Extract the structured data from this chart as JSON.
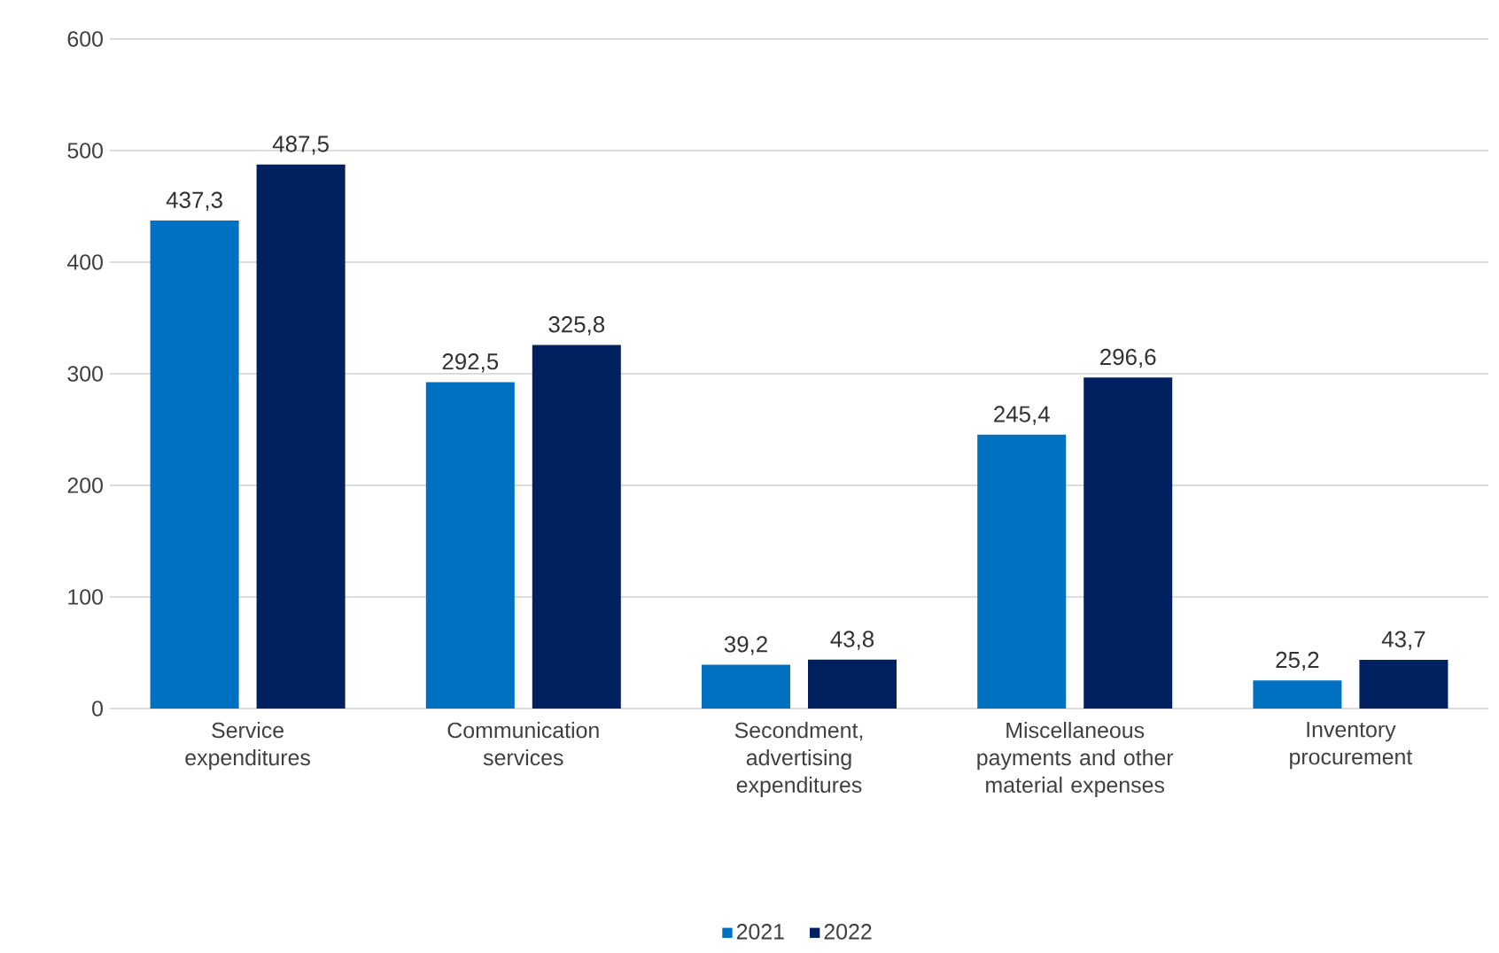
{
  "chart_data": {
    "type": "bar",
    "categories": [
      "Service expenditures",
      "Communication services",
      "Secondment, advertising expenditures",
      "Miscellaneous payments and other material expenses",
      "Inventory procurement"
    ],
    "series": [
      {
        "name": "2021",
        "color": "#0070c0",
        "values": [
          437.3,
          292.5,
          39.2,
          245.4,
          25.2
        ],
        "value_labels": [
          "437,3",
          "292,5",
          "39,2",
          "245,4",
          "25,2"
        ]
      },
      {
        "name": "2022",
        "color": "#002060",
        "values": [
          487.5,
          325.8,
          43.8,
          296.6,
          43.7
        ],
        "value_labels": [
          "487,5",
          "325,8",
          "43,8",
          "296,6",
          "43,7"
        ]
      }
    ],
    "ylim": [
      0,
      600
    ],
    "yticks": [
      0,
      100,
      200,
      300,
      400,
      500,
      600
    ],
    "grid": "y",
    "legend": "bottom"
  }
}
